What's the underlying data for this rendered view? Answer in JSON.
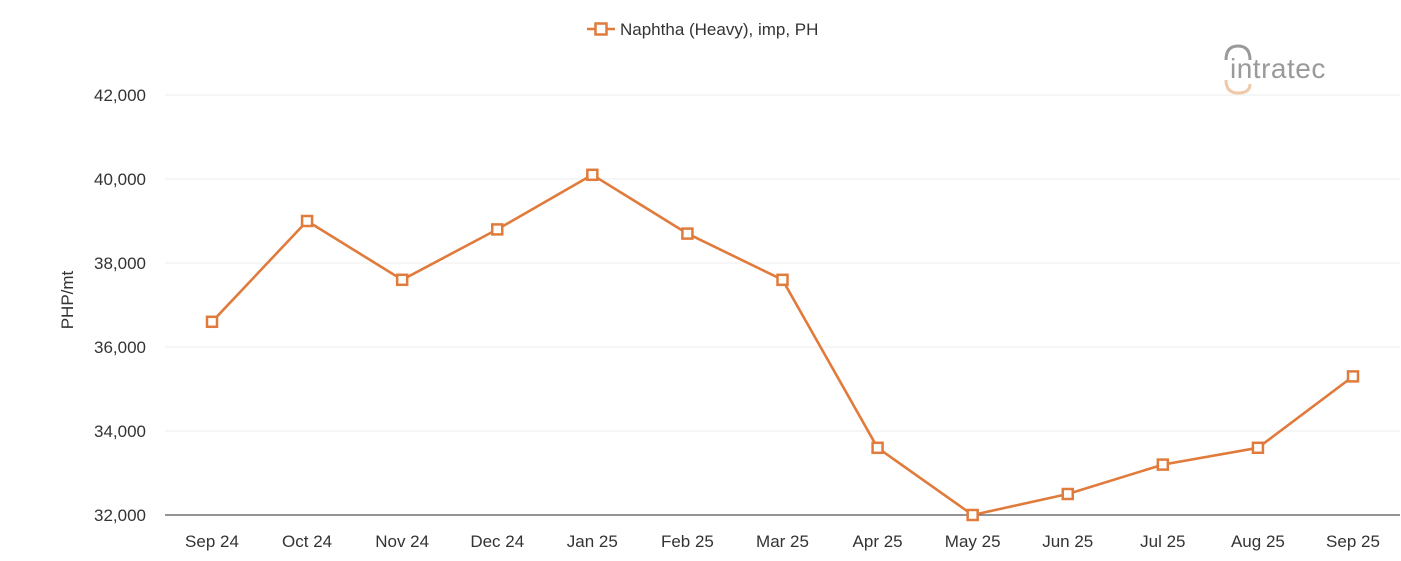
{
  "legend": {
    "label": "Naphtha (Heavy), imp, PH",
    "color": "#e07b3c"
  },
  "logo": {
    "text": "intratec"
  },
  "colors": {
    "series": "#e07b3c",
    "grid": "#ececec",
    "axis": "#555555",
    "text": "#333333"
  },
  "chart_data": {
    "type": "line",
    "title": "",
    "xlabel": "",
    "ylabel": "PHP/mt",
    "ylim": [
      32000,
      42000
    ],
    "yticks": [
      32000,
      34000,
      36000,
      38000,
      40000,
      42000
    ],
    "ytick_labels": [
      "32,000",
      "34,000",
      "36,000",
      "38,000",
      "40,000",
      "42,000"
    ],
    "grid": true,
    "legend_position": "top-center",
    "categories": [
      "Sep 24",
      "Oct 24",
      "Nov 24",
      "Dec 24",
      "Jan 25",
      "Feb 25",
      "Mar 25",
      "Apr 25",
      "May 25",
      "Jun 25",
      "Jul 25",
      "Aug 25",
      "Sep 25"
    ],
    "series": [
      {
        "name": "Naphtha (Heavy), imp, PH",
        "marker": "open-square",
        "values": [
          36600,
          39000,
          37600,
          38800,
          40100,
          38700,
          37600,
          33600,
          32000,
          32500,
          33200,
          33600,
          35300
        ]
      }
    ]
  }
}
